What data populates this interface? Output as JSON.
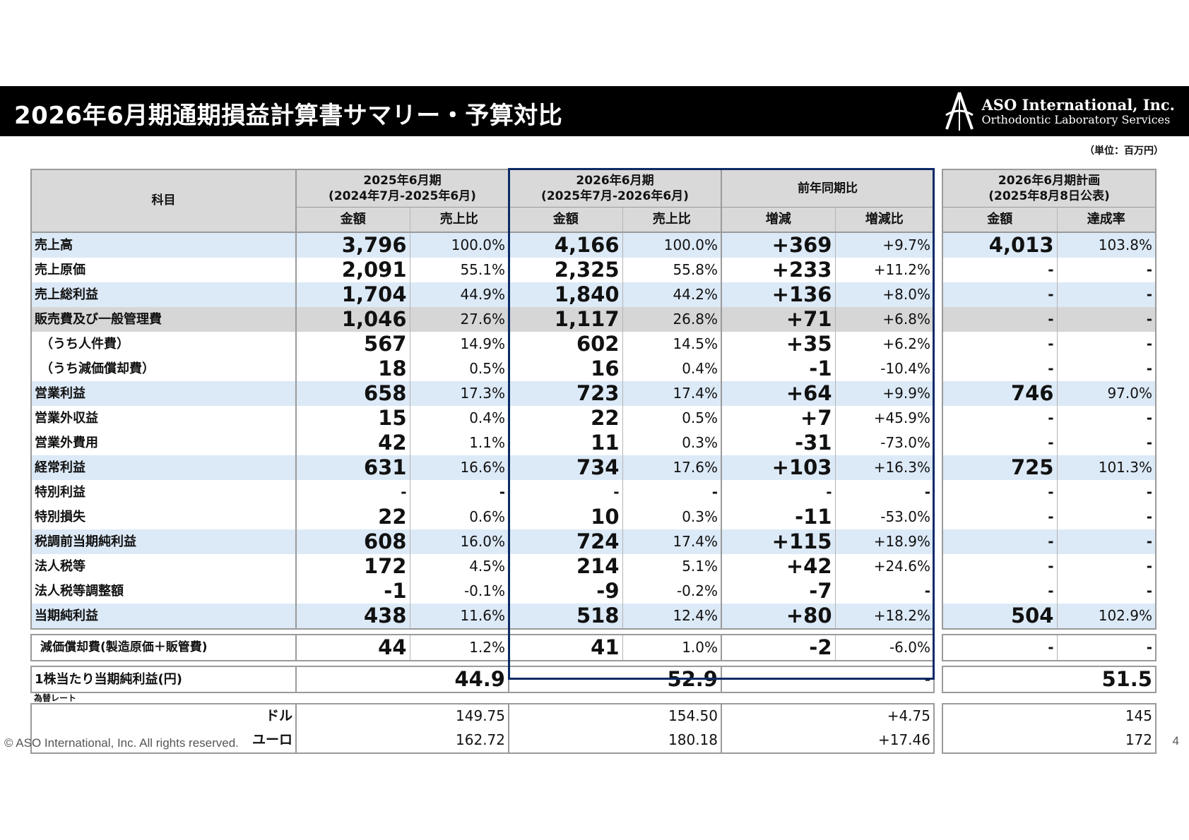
{
  "title": "2026年6月期通期損益計算書サマリー・予算対比",
  "logo": {
    "name": "ASO International, Inc.",
    "tagline": "Orthodontic Laboratory Services",
    "icon": "aso-logo-icon"
  },
  "unit": "（単位：百万円）",
  "headers": {
    "subject": "科目",
    "fy2025": "2025年6月期\n(2024年7月-2025年6月)",
    "fy2026": "2026年6月期\n(2025年7月-2026年6月)",
    "yoy": "前年同期比",
    "plan": "2026年6月期計画\n(2025年8月8日公表)",
    "amount": "金額",
    "ratio": "売上比",
    "change": "増減",
    "change_rate": "増減比",
    "plan_amount": "金額",
    "achievement": "達成率"
  },
  "rows": [
    {
      "label": "売上高",
      "a25": "3,796",
      "r25": "100.0%",
      "a26": "4,166",
      "r26": "100.0%",
      "chg": "+369",
      "chgr": "+9.7%",
      "plan": "4,013",
      "ach": "103.8%"
    },
    {
      "label": "売上原価",
      "a25": "2,091",
      "r25": "55.1%",
      "a26": "2,325",
      "r26": "55.8%",
      "chg": "+233",
      "chgr": "+11.2%",
      "plan": "-",
      "ach": "-"
    },
    {
      "label": "売上総利益",
      "a25": "1,704",
      "r25": "44.9%",
      "a26": "1,840",
      "r26": "44.2%",
      "chg": "+136",
      "chgr": "+8.0%",
      "plan": "-",
      "ach": "-"
    },
    {
      "label": "販売費及び一般管理費",
      "a25": "1,046",
      "r25": "27.6%",
      "a26": "1,117",
      "r26": "26.8%",
      "chg": "+71",
      "chgr": "+6.8%",
      "plan": "-",
      "ach": "-"
    },
    {
      "label": "（うち人件費）",
      "a25": "567",
      "r25": "14.9%",
      "a26": "602",
      "r26": "14.5%",
      "chg": "+35",
      "chgr": "+6.2%",
      "plan": "-",
      "ach": "-"
    },
    {
      "label": "（うち減価償却費）",
      "a25": "18",
      "r25": "0.5%",
      "a26": "16",
      "r26": "0.4%",
      "chg": "-1",
      "chgr": "-10.4%",
      "plan": "-",
      "ach": "-"
    },
    {
      "label": "営業利益",
      "a25": "658",
      "r25": "17.3%",
      "a26": "723",
      "r26": "17.4%",
      "chg": "+64",
      "chgr": "+9.9%",
      "plan": "746",
      "ach": "97.0%"
    },
    {
      "label": "営業外収益",
      "a25": "15",
      "r25": "0.4%",
      "a26": "22",
      "r26": "0.5%",
      "chg": "+7",
      "chgr": "+45.9%",
      "plan": "-",
      "ach": "-"
    },
    {
      "label": "営業外費用",
      "a25": "42",
      "r25": "1.1%",
      "a26": "11",
      "r26": "0.3%",
      "chg": "-31",
      "chgr": "-73.0%",
      "plan": "-",
      "ach": "-"
    },
    {
      "label": "経常利益",
      "a25": "631",
      "r25": "16.6%",
      "a26": "734",
      "r26": "17.6%",
      "chg": "+103",
      "chgr": "+16.3%",
      "plan": "725",
      "ach": "101.3%"
    },
    {
      "label": "特別利益",
      "a25": "-",
      "r25": "-",
      "a26": "-",
      "r26": "-",
      "chg": "-",
      "chgr": "-",
      "plan": "-",
      "ach": "-"
    },
    {
      "label": "特別損失",
      "a25": "22",
      "r25": "0.6%",
      "a26": "10",
      "r26": "0.3%",
      "chg": "-11",
      "chgr": "-53.0%",
      "plan": "-",
      "ach": "-"
    },
    {
      "label": "税調前当期純利益",
      "a25": "608",
      "r25": "16.0%",
      "a26": "724",
      "r26": "17.4%",
      "chg": "+115",
      "chgr": "+18.9%",
      "plan": "-",
      "ach": "-"
    },
    {
      "label": "法人税等",
      "a25": "172",
      "r25": "4.5%",
      "a26": "214",
      "r26": "5.1%",
      "chg": "+42",
      "chgr": "+24.6%",
      "plan": "-",
      "ach": "-"
    },
    {
      "label": "法人税等調整額",
      "a25": "-1",
      "r25": "-0.1%",
      "a26": "-9",
      "r26": "-0.2%",
      "chg": "-7",
      "chgr": "-",
      "plan": "-",
      "ach": "-"
    },
    {
      "label": "当期純利益",
      "a25": "438",
      "r25": "11.6%",
      "a26": "518",
      "r26": "12.4%",
      "chg": "+80",
      "chgr": "+18.2%",
      "plan": "504",
      "ach": "102.9%"
    }
  ],
  "depreciation": {
    "label": "減価償却費(製造原価＋販管費)",
    "a25": "44",
    "r25": "1.2%",
    "a26": "41",
    "r26": "1.0%",
    "chg": "-2",
    "chgr": "-6.0%",
    "plan": "-",
    "ach": "-"
  },
  "eps": {
    "label": "1株当たり当期純利益(円)",
    "v25": "44.9",
    "v26": "52.9",
    "chg": "-",
    "plan": "51.5"
  },
  "fx": {
    "label": "為替レート",
    "usd": {
      "label": "ドル",
      "v25": "149.75",
      "v26": "154.50",
      "chg": "+4.75",
      "plan": "145"
    },
    "eur": {
      "label": "ユーロ",
      "v25": "162.72",
      "v26": "180.18",
      "chg": "+17.46",
      "plan": "172"
    }
  },
  "footer": "© ASO International, Inc. All rights reserved.",
  "page_number": "4"
}
